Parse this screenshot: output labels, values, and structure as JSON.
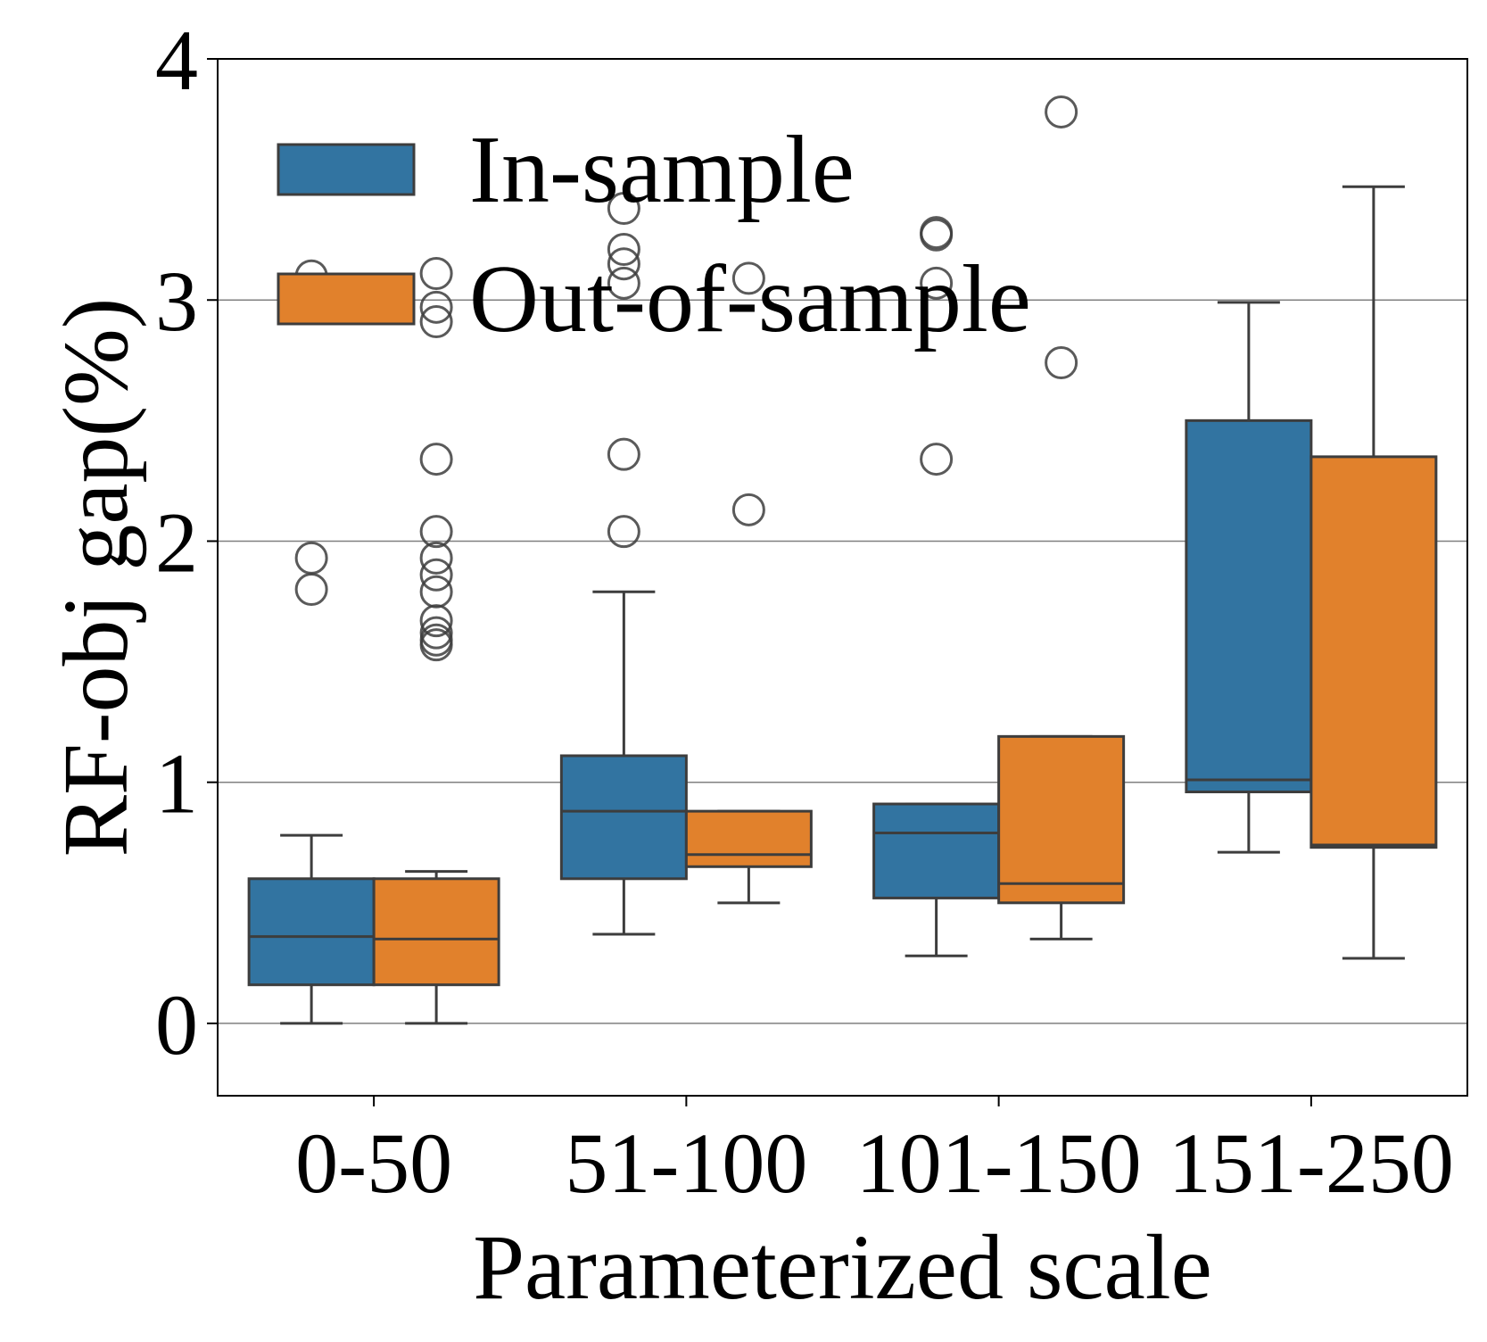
{
  "chart_data": {
    "type": "box",
    "title": "",
    "xlabel": "Parameterized scale",
    "ylabel": "RF-obj gap(%)",
    "ylim": [
      -0.3,
      4.0
    ],
    "yticks": [
      0,
      1,
      2,
      3,
      4
    ],
    "grid": "horizontal",
    "legend_position": "top-left",
    "categories": [
      "0-50",
      "51-100",
      "101-150",
      "151-250"
    ],
    "series": [
      {
        "name": "In-sample",
        "color": "#3274a1",
        "boxes": [
          {
            "whisker_low": 0.0,
            "q1": 0.16,
            "median": 0.36,
            "q3": 0.6,
            "whisker_high": 0.78,
            "outliers": [
              1.8,
              1.93,
              3.1
            ]
          },
          {
            "whisker_low": 0.37,
            "q1": 0.6,
            "median": 0.88,
            "q3": 1.11,
            "whisker_high": 1.79,
            "outliers": [
              2.04,
              2.36,
              3.07,
              3.15,
              3.21,
              3.38
            ]
          },
          {
            "whisker_low": 0.28,
            "q1": 0.52,
            "median": 0.79,
            "q3": 0.91,
            "whisker_high": 0.91,
            "outliers": [
              2.34,
              3.07,
              3.27,
              3.28
            ]
          },
          {
            "whisker_low": 0.71,
            "q1": 0.96,
            "median": 1.01,
            "q3": 2.5,
            "whisker_high": 2.99,
            "outliers": []
          }
        ]
      },
      {
        "name": "Out-of-sample",
        "color": "#e1812c",
        "boxes": [
          {
            "whisker_low": 0.0,
            "q1": 0.16,
            "median": 0.35,
            "q3": 0.6,
            "whisker_high": 0.63,
            "outliers": [
              1.57,
              1.59,
              1.62,
              1.67,
              1.79,
              1.86,
              1.93,
              2.04,
              2.34,
              2.91,
              2.97,
              3.11
            ]
          },
          {
            "whisker_low": 0.5,
            "q1": 0.65,
            "median": 0.7,
            "q3": 0.88,
            "whisker_high": 0.88,
            "outliers": [
              2.13,
              3.09
            ]
          },
          {
            "whisker_low": 0.35,
            "q1": 0.5,
            "median": 0.58,
            "q3": 1.19,
            "whisker_high": 1.19,
            "outliers": [
              2.74,
              3.78
            ]
          },
          {
            "whisker_low": 0.27,
            "q1": 0.73,
            "median": 0.74,
            "q3": 2.35,
            "whisker_high": 3.47,
            "outliers": []
          }
        ]
      }
    ]
  }
}
